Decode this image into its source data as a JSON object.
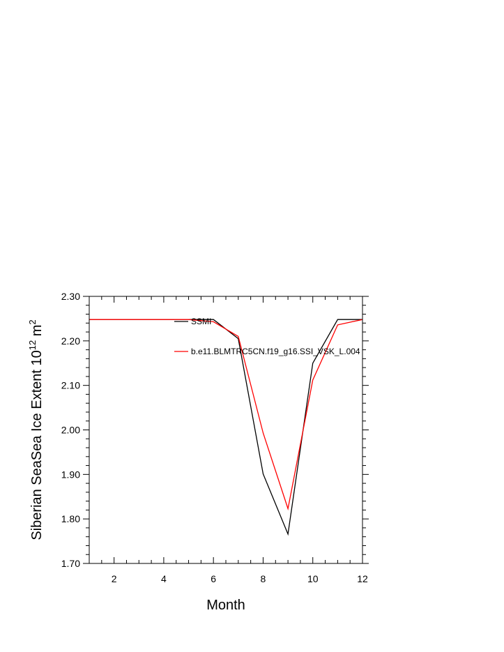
{
  "chart_data": {
    "type": "line",
    "title": "",
    "xlabel": "Month",
    "ylabel": {
      "text": "Siberian SeaSea Ice Extent 10",
      "exponent": "12",
      "unit": "m",
      "unit_exponent": "2"
    },
    "xlim": [
      1,
      12
    ],
    "ylim": [
      1.7,
      2.3
    ],
    "xticks": [
      2,
      4,
      6,
      8,
      10,
      12
    ],
    "xtick_labels": [
      "2",
      "4",
      "6",
      "8",
      "10",
      "12"
    ],
    "yticks": [
      1.7,
      1.8,
      1.9,
      2.0,
      2.1,
      2.2,
      2.3
    ],
    "ytick_labels": [
      "1.70",
      "1.80",
      "1.90",
      "2.00",
      "2.10",
      "2.20",
      "2.30"
    ],
    "grid": false,
    "legend_placement": "top-center",
    "x": [
      1,
      2,
      3,
      4,
      5,
      6,
      7,
      8,
      9,
      10,
      11,
      12
    ],
    "series": [
      {
        "name": "SSMI",
        "color": "#000000",
        "values": [
          2.248,
          2.248,
          2.248,
          2.248,
          2.248,
          2.248,
          2.205,
          1.901,
          1.766,
          2.15,
          2.248,
          2.248
        ]
      },
      {
        "name": "b.e11.BLMTRC5CN.f19_g16.SSI_VSK_L.004",
        "color": "#ff0000",
        "values": [
          2.248,
          2.248,
          2.248,
          2.248,
          2.248,
          2.243,
          2.21,
          1.993,
          1.823,
          2.112,
          2.236,
          2.248
        ]
      }
    ]
  }
}
